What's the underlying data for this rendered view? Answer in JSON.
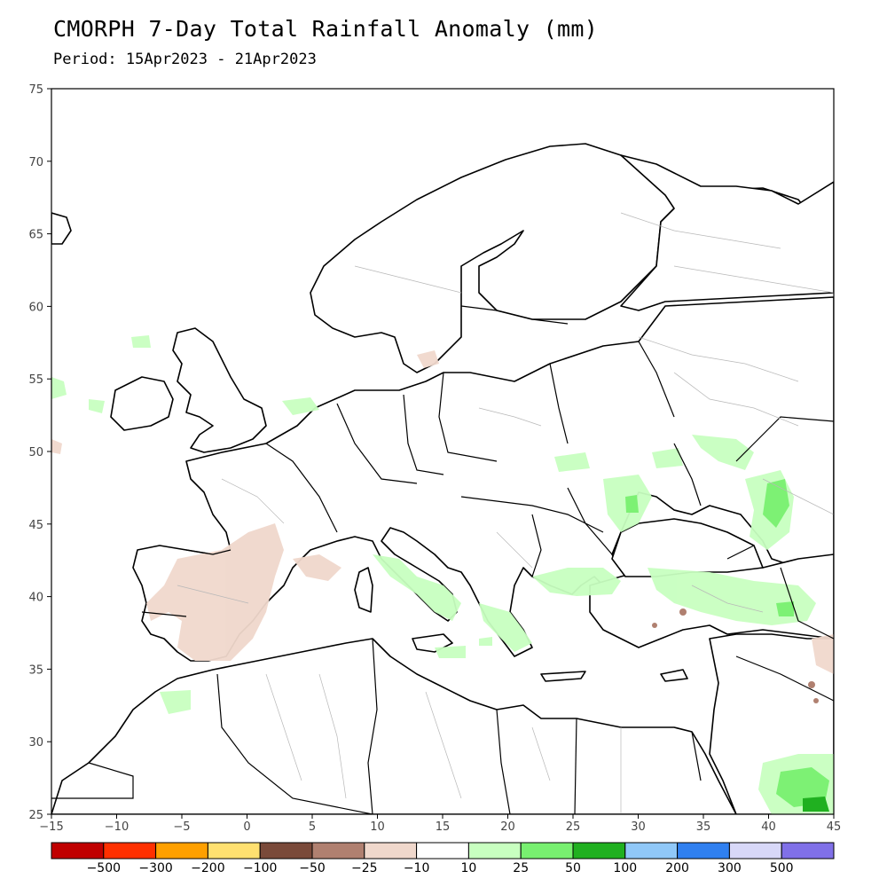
{
  "header": {
    "title": "CMORPH 7-Day Total Rainfall Anomaly (mm)",
    "period": "Period: 15Apr2023 - 21Apr2023"
  },
  "map": {
    "lon_range": [
      -15,
      45
    ],
    "lat_range": [
      25,
      75
    ],
    "lon_ticks": [
      "−15",
      "−10",
      "−5",
      "0",
      "5",
      "10",
      "15",
      "20",
      "25",
      "30",
      "35",
      "40",
      "45"
    ],
    "lat_ticks": [
      "25",
      "30",
      "35",
      "40",
      "45",
      "50",
      "55",
      "60",
      "65",
      "70",
      "75"
    ]
  },
  "colorbar": {
    "colors": [
      "#c00000",
      "#ff3000",
      "#ffa000",
      "#ffe070",
      "#7a4a3a",
      "#b08070",
      "#f0d8cc",
      "#ffffff",
      "#c8ffc0",
      "#78f070",
      "#20b020",
      "#90c8f8",
      "#3080f0",
      "#d8d8f8",
      "#8070e8"
    ],
    "labels": [
      "−500",
      "−300",
      "−200",
      "−100",
      "−50",
      "−25",
      "−10",
      "10",
      "25",
      "50",
      "100",
      "200",
      "300",
      "500"
    ]
  }
}
